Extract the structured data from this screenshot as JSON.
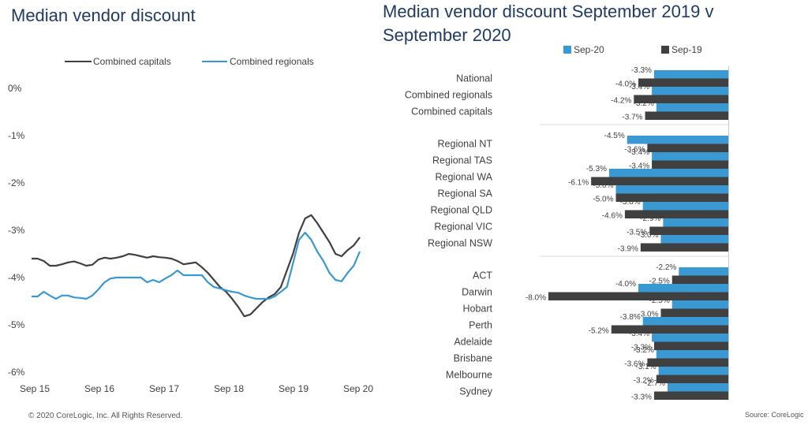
{
  "chart_data": [
    {
      "type": "line",
      "title": "Median vendor discount",
      "ylim": [
        -6,
        0
      ],
      "yticks": [
        "0%",
        "-1%",
        "-2%",
        "-3%",
        "-4%",
        "-5%",
        "-6%"
      ],
      "ytick_values": [
        0,
        -1,
        -2,
        -3,
        -4,
        -5,
        -6
      ],
      "xticks": [
        "Sep 15",
        "Sep 16",
        "Sep 17",
        "Sep 18",
        "Sep 19",
        "Sep 20"
      ],
      "grid": false,
      "legend_position": "top",
      "series": [
        {
          "name": "Combined capitals",
          "color": "#404040",
          "values": [
            -3.6,
            -3.6,
            -3.65,
            -3.75,
            -3.75,
            -3.72,
            -3.68,
            -3.66,
            -3.7,
            -3.75,
            -3.73,
            -3.62,
            -3.58,
            -3.6,
            -3.58,
            -3.55,
            -3.5,
            -3.52,
            -3.55,
            -3.58,
            -3.55,
            -3.57,
            -3.58,
            -3.6,
            -3.65,
            -3.72,
            -3.7,
            -3.68,
            -3.78,
            -3.9,
            -4.05,
            -4.2,
            -4.3,
            -4.45,
            -4.62,
            -4.82,
            -4.78,
            -4.65,
            -4.52,
            -4.42,
            -4.35,
            -4.2,
            -3.85,
            -3.5,
            -3.05,
            -2.75,
            -2.68,
            -2.85,
            -3.05,
            -3.25,
            -3.5,
            -3.55,
            -3.42,
            -3.32,
            -3.15
          ]
        },
        {
          "name": "Combined regionals",
          "color": "#3a98d2",
          "values": [
            -4.4,
            -4.4,
            -4.3,
            -4.38,
            -4.45,
            -4.38,
            -4.38,
            -4.42,
            -4.43,
            -4.45,
            -4.38,
            -4.25,
            -4.1,
            -4.02,
            -4.0,
            -4.0,
            -4.0,
            -4.0,
            -4.0,
            -4.1,
            -4.05,
            -4.1,
            -4.02,
            -3.95,
            -3.85,
            -3.95,
            -3.95,
            -3.95,
            -3.95,
            -4.1,
            -4.2,
            -4.23,
            -4.27,
            -4.3,
            -4.32,
            -4.38,
            -4.42,
            -4.45,
            -4.45,
            -4.45,
            -4.4,
            -4.3,
            -4.2,
            -3.7,
            -3.2,
            -3.05,
            -3.2,
            -3.45,
            -3.65,
            -3.9,
            -4.05,
            -4.08,
            -3.9,
            -3.75,
            -3.45
          ]
        }
      ]
    },
    {
      "type": "bar",
      "orientation": "horizontal",
      "title": "Median vendor discount September 2019 v September 2020",
      "legend_position": "top",
      "xlim": [
        -8,
        0
      ],
      "groups": [
        {
          "categories": [
            "National",
            "Combined regionals",
            "Combined capitals"
          ]
        },
        {
          "categories": [
            "Regional NT",
            "Regional TAS",
            "Regional WA",
            "Regional SA",
            "Regional QLD",
            "Regional VIC",
            "Regional NSW"
          ]
        },
        {
          "categories": [
            "ACT",
            "Darwin",
            "Hobart",
            "Perth",
            "Adelaide",
            "Brisbane",
            "Melbourne",
            "Sydney"
          ]
        }
      ],
      "series": [
        {
          "name": "Sep-20",
          "color": "#3a98d2",
          "values": [
            -3.3,
            -3.4,
            -3.2,
            -4.5,
            -3.4,
            -5.3,
            -5.0,
            -3.8,
            -2.9,
            -3.0,
            -2.2,
            -4.0,
            -2.5,
            -3.8,
            -3.4,
            -3.2,
            -3.1,
            -2.7
          ],
          "labels": [
            "-3.3%",
            "-3.4%",
            "-3.2%",
            "-4.5%",
            "-3.4%",
            "-5.3%",
            "-5.0%",
            "-3.8%",
            "-2.9%",
            "-3.0%",
            "-2.2%",
            "-4.0%",
            "-2.5%",
            "-3.8%",
            "-3.4%",
            "-3.2%",
            "-3.1%",
            "-2.7%"
          ]
        },
        {
          "name": "Sep-19",
          "color": "#404040",
          "values": [
            -4.0,
            -4.2,
            -3.7,
            -3.6,
            -3.4,
            -6.1,
            -5.0,
            -4.6,
            -3.5,
            -3.9,
            -2.5,
            -8.0,
            -3.0,
            -5.2,
            -3.3,
            -3.6,
            -3.2,
            -3.3
          ],
          "labels": [
            "-4.0%",
            "-4.2%",
            "-3.7%",
            "-3.6%",
            "-3.4%",
            "-6.1%",
            "-5.0%",
            "-4.6%",
            "-3.5%",
            "-3.9%",
            "-2.5%",
            "-8.0%",
            "-3.0%",
            "-5.2%",
            "-3.3%",
            "-3.6%",
            "-3.2%",
            "-3.3%"
          ]
        }
      ]
    }
  ],
  "footer": {
    "copyright": "© 2020 CoreLogic, Inc. All Rights Reserved.",
    "source": "Source: CoreLogic"
  }
}
